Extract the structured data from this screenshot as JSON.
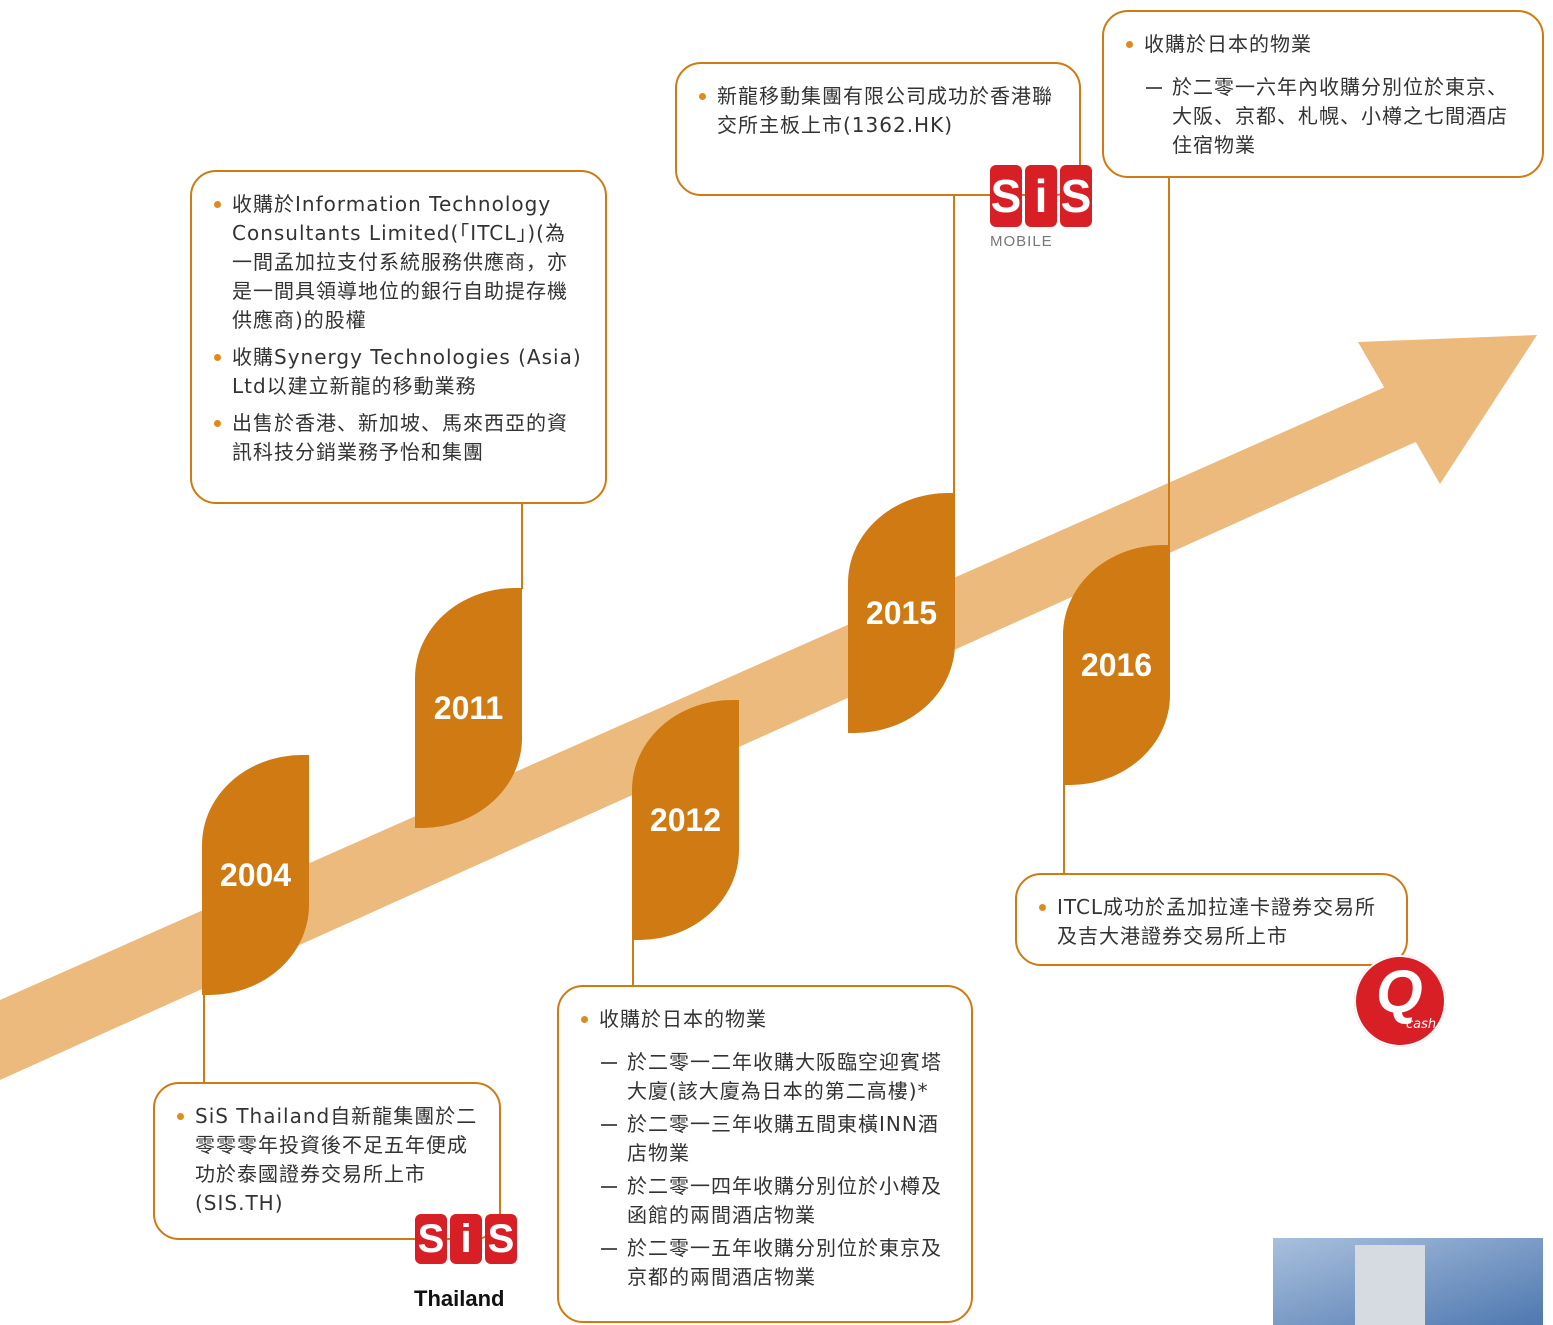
{
  "years": [
    "2004",
    "2011",
    "2012",
    "2015",
    "2016"
  ],
  "boxes": [
    {
      "items": [
        {
          "text": "SiS Thailand自新龍集團於二零零零年投資後不足五年便成功於泰國證券交易所上市(SIS.TH)"
        }
      ]
    },
    {
      "items": [
        {
          "text": "收購於Information Technology Consultants Limited(「ITCL」)(為一間孟加拉支付系統服務供應商，亦是一間具領導地位的銀行自助提存機供應商)的股權"
        },
        {
          "text": "收購Synergy Technologies (Asia) Ltd以建立新龍的移動業務"
        },
        {
          "text": "出售於香港、新加坡、馬來西亞的資訊科技分銷業務予怡和集團"
        }
      ]
    },
    {
      "items": [
        {
          "text": "收購於日本的物業",
          "sub": [
            "於二零一二年收購大阪臨空迎賓塔大廈(該大廈為日本的第二高樓)*",
            "於二零一三年收購五間東橫INN酒店物業",
            "於二零一四年收購分別位於小樽及函館的兩間酒店物業",
            "於二零一五年收購分別位於東京及京都的兩間酒店物業"
          ]
        }
      ]
    },
    {
      "items": [
        {
          "text": "新龍移動集團有限公司成功於香港聯交所主板上市(1362.HK)"
        }
      ]
    },
    {
      "items": [
        {
          "text": "收購於日本的物業",
          "sub": [
            "於二零一六年內收購分別位於東京、大阪、京都、札幌、小樽之七間酒店住宿物業"
          ]
        }
      ]
    },
    {
      "items": [
        {
          "text": "ITCL成功於孟加拉達卡證券交易所及吉大港證券交易所上市"
        }
      ]
    }
  ],
  "logos": {
    "sis_thailand": {
      "letters": [
        "S",
        "i",
        "S"
      ],
      "caption": "Thailand"
    },
    "sis_mobile": {
      "letters": [
        "S",
        "i",
        "S"
      ],
      "caption": "MOBILE"
    },
    "qcash": {
      "letter": "Q",
      "caption": "cash"
    }
  }
}
